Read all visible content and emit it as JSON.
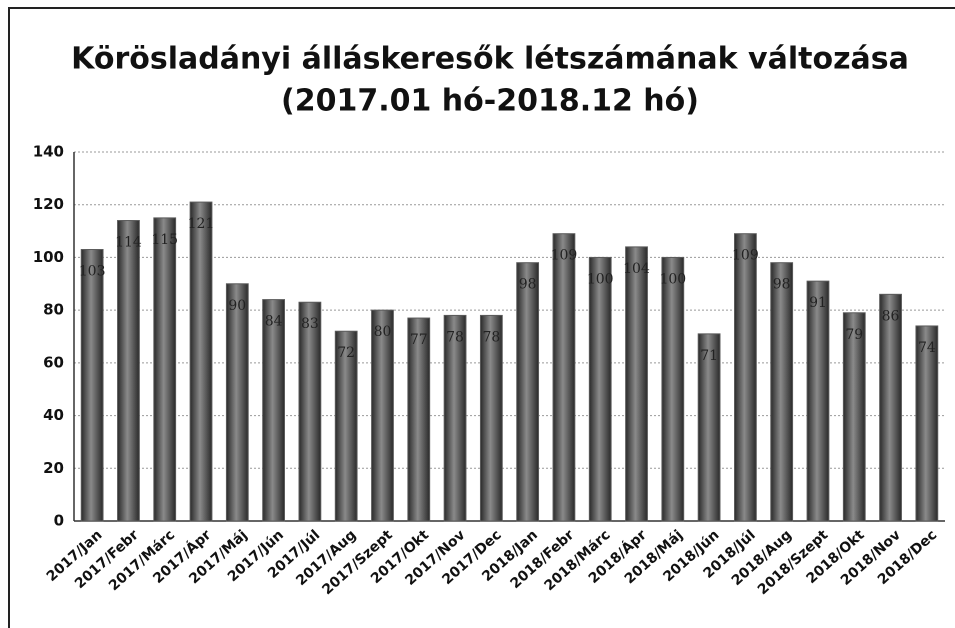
{
  "chart_data": {
    "type": "bar",
    "title": "Körösladányi álláskeresők létszámának változása",
    "subtitle": "(2017.01 hó-2018.12 hó)",
    "categories": [
      "2017/Jan",
      "2017/Febr",
      "2017/Márc",
      "2017/Ápr",
      "2017/Máj",
      "2017/Jún",
      "2017/Júl",
      "2017/Aug",
      "2017/Szept",
      "2017/Okt",
      "2017/Nov",
      "2017/Dec",
      "2018/Jan",
      "2018/Febr",
      "2018/Márc",
      "2018/Ápr",
      "2018/Máj",
      "2018/Jún",
      "2018/Júl",
      "2018/Aug",
      "2018/Szept",
      "2018/Okt",
      "2018/Nov",
      "2018/Dec"
    ],
    "values": [
      103,
      114,
      115,
      121,
      90,
      84,
      83,
      72,
      80,
      77,
      78,
      78,
      98,
      109,
      100,
      104,
      100,
      71,
      109,
      98,
      91,
      79,
      86,
      74
    ],
    "color": "#5a5a5a",
    "ylim": [
      0,
      140
    ],
    "yticks": [
      0,
      20,
      40,
      60,
      80,
      100,
      120,
      140
    ],
    "grid": true
  }
}
